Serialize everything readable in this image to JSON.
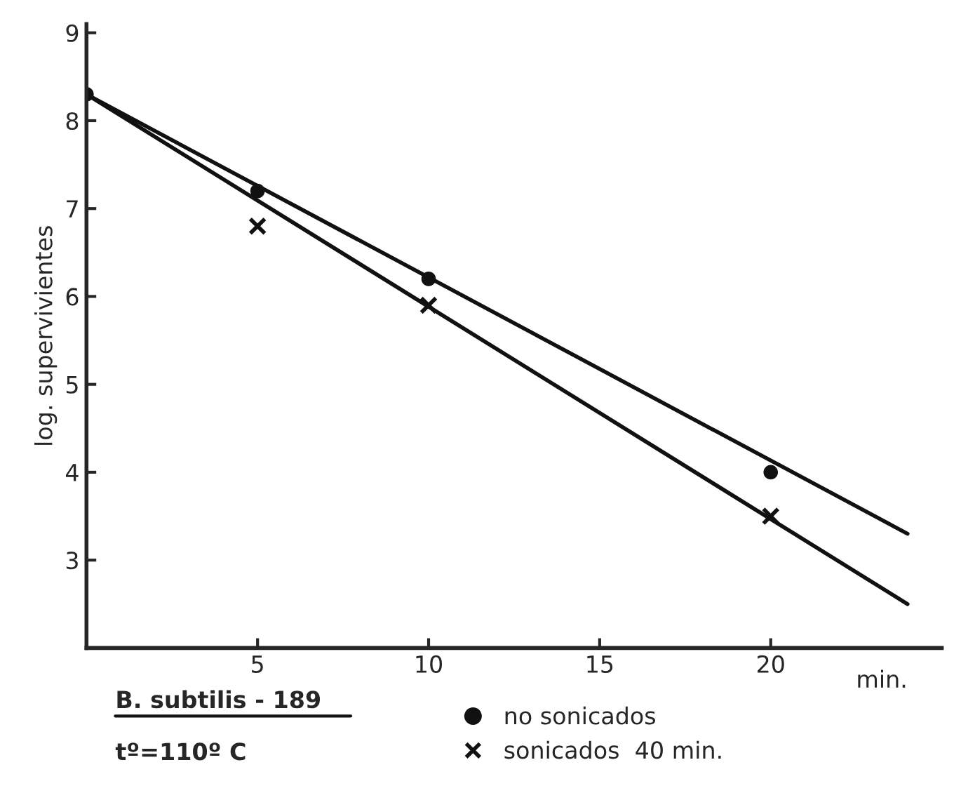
{
  "chart_data": {
    "type": "scatter",
    "xlabel": "min.",
    "ylabel": "log. supervivientes",
    "annotations": [
      "B. subtilis - 189",
      "tº=110º C"
    ],
    "xlim": [
      0,
      25
    ],
    "ylim": [
      2,
      9.1
    ],
    "xticks": [
      5,
      10,
      15,
      20
    ],
    "yticks": [
      3,
      4,
      5,
      6,
      7,
      8,
      9
    ],
    "legend": "bottom",
    "series": [
      {
        "name": "no sonicados",
        "marker": "circle",
        "color": "#111111",
        "x": [
          0,
          5,
          10,
          20
        ],
        "values": [
          8.3,
          7.2,
          6.2,
          4.0
        ]
      },
      {
        "name": "sonicados  40 min.",
        "marker": "cross",
        "color": "#111111",
        "x": [
          5,
          10,
          20
        ],
        "values": [
          6.8,
          5.9,
          3.5
        ]
      },
      {
        "type": "line",
        "color": "#111111",
        "x": [
          0,
          24
        ],
        "values": [
          8.3,
          3.3
        ]
      },
      {
        "type": "line",
        "color": "#111111",
        "x": [
          0,
          24
        ],
        "values": [
          8.3,
          2.5
        ]
      }
    ]
  }
}
